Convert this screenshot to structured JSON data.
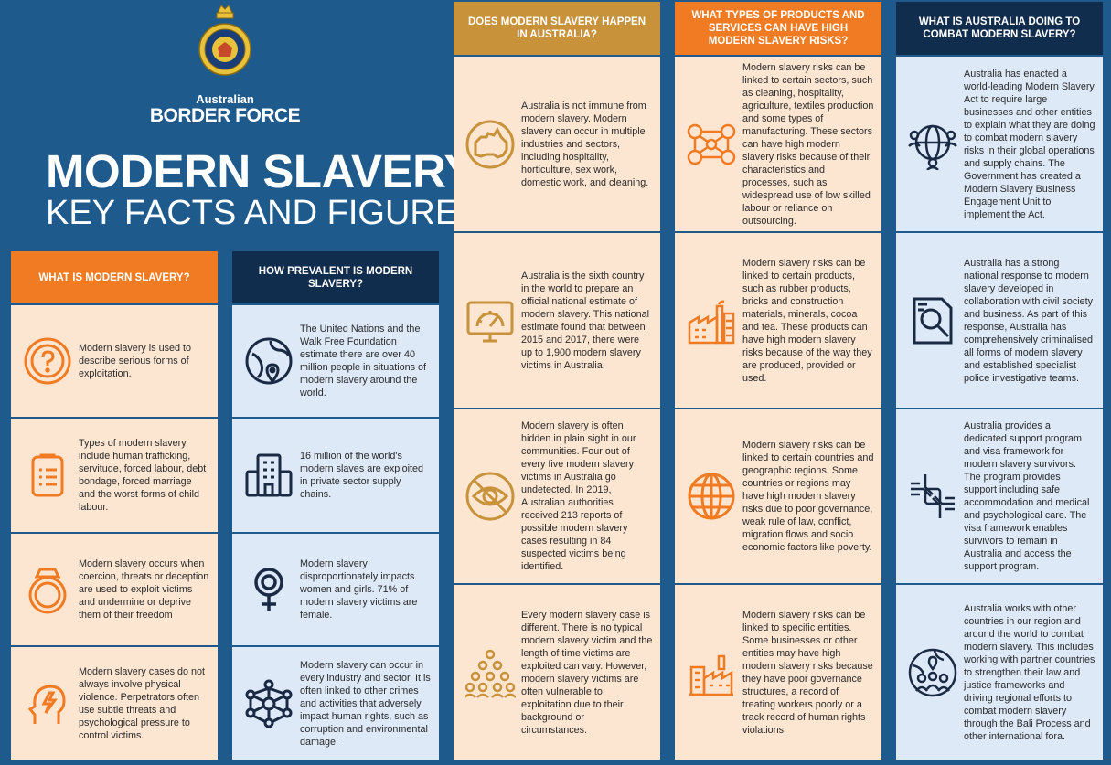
{
  "brand": {
    "line1": "Australian",
    "line2": "BORDER FORCE",
    "logo_icon": "border-force-crest-icon"
  },
  "title": {
    "line1": "MODERN SLAVERY",
    "line2": "KEY FACTS AND FIGURES"
  },
  "colors": {
    "background": "#1f5a8c",
    "orange": "#f07b22",
    "navy": "#112d4e",
    "gold": "#c8923a",
    "peach": "#fce6d2",
    "light_blue": "#dde9f7"
  },
  "columns": [
    {
      "heading": "WHAT IS MODERN SLAVERY?",
      "cells": [
        {
          "icon": "question-mark-icon",
          "text": "Modern slavery is used to describe serious forms of exploitation."
        },
        {
          "icon": "clipboard-list-icon",
          "text": "Types of modern slavery include human trafficking, servitude, forced labour, debt bondage, forced marriage and the worst forms of child labour."
        },
        {
          "icon": "ring-icon",
          "text": "Modern slavery occurs when coercion, threats or deception are used to exploit victims and undermine or deprive them of their freedom"
        },
        {
          "icon": "head-lightning-icon",
          "text": "Modern slavery cases do not always involve physical violence. Perpetrators often use subtle threats and psychological pressure to control victims."
        }
      ]
    },
    {
      "heading": "HOW PREVALENT IS MODERN SLAVERY?",
      "cells": [
        {
          "icon": "globe-location-icon",
          "text": "The United Nations and the Walk Free Foundation estimate there are over 40 million people in situations of modern slavery around the world."
        },
        {
          "icon": "office-building-icon",
          "text": "16 million of the world's modern slaves are exploited in private sector supply chains."
        },
        {
          "icon": "female-symbol-icon",
          "text": "Modern slavery disproportionately impacts women and girls. 71% of modern slavery victims are female."
        },
        {
          "icon": "network-icon",
          "text": "Modern slavery can occur in every industry and sector. It is often linked to other crimes and activities that adversely impact human rights, such as corruption and environmental damage."
        }
      ]
    },
    {
      "heading": "DOES MODERN SLAVERY HAPPEN IN AUSTRALIA?",
      "cells": [
        {
          "icon": "australia-map-icon",
          "text": "Australia is not immune from modern slavery. Modern slavery can occur in multiple industries and sectors, including hospitality, horticulture, sex work, domestic work, and cleaning."
        },
        {
          "icon": "gauge-monitor-icon",
          "text": "Australia is the sixth country in the world to prepare an official national estimate of modern slavery. This national estimate found that between 2015 and 2017, there were up to 1,900 modern slavery victims in Australia."
        },
        {
          "icon": "eye-slash-icon",
          "text": "Modern slavery is often hidden in plain sight in our communities. Four out of every five modern slavery victims in Australia go undetected. In 2019, Australian authorities received 213 reports of possible modern slavery cases resulting in 84 suspected victims being identified."
        },
        {
          "icon": "crowd-icon",
          "text": "Every modern slavery case is different. There is no typical modern slavery victim and the length of time victims are exploited can vary. However, modern slavery victims are often vulnerable to exploitation due to their background or circumstances."
        }
      ]
    },
    {
      "heading": "WHAT TYPES OF PRODUCTS AND SERVICES CAN HAVE HIGH MODERN SLAVERY RISKS?",
      "cells": [
        {
          "icon": "people-network-icon",
          "text": "Modern slavery risks can be linked to certain sectors, such as cleaning, hospitality, agriculture, textiles production and some types of manufacturing. These sectors can have high modern slavery risks because of their characteristics and processes, such as widespread use of low skilled labour or reliance on outsourcing."
        },
        {
          "icon": "factory-icon",
          "text": "Modern slavery risks can be linked to certain products, such as rubber products, bricks and construction materials, minerals, cocoa and tea. These products can have high modern slavery risks because of the way they are produced, provided or used."
        },
        {
          "icon": "globe-icon",
          "text": "Modern slavery risks can be linked to certain countries and geographic regions. Some countries or regions may have high modern slavery risks due to poor governance, weak rule of law, conflict, migration flows and socio economic factors like poverty."
        },
        {
          "icon": "industry-buildings-icon",
          "text": "Modern slavery risks can be linked to specific entities. Some businesses or other entities may have high modern slavery risks because they have poor governance structures, a record of treating workers poorly or a track record of human rights violations."
        }
      ]
    },
    {
      "heading": "WHAT IS AUSTRALIA DOING TO COMBAT MODERN SLAVERY?",
      "cells": [
        {
          "icon": "globe-people-icon",
          "text": "Australia has enacted a world-leading Modern Slavery Act to require large businesses and other entities to explain what they are doing to combat modern slavery risks in their global operations and supply chains. The Government has created a Modern Slavery Business Engagement Unit to implement the Act."
        },
        {
          "icon": "magnifier-document-icon",
          "text": "Australia has a strong national response to modern slavery developed in collaboration with civil society and business. As part of this response, Australia has comprehensively criminalised all forms of modern slavery and established specialist police investigative teams."
        },
        {
          "icon": "hands-together-icon",
          "text": "Australia provides a dedicated support program and visa framework for modern slavery survivors. The program provides support including safe accommodation and medical and psychological care. The visa framework enables survivors to remain in Australia and access the support program."
        },
        {
          "icon": "globe-partners-icon",
          "text": "Australia works with other countries in our region and around the world to combat modern slavery. This includes working with partner countries to strengthen their law and justice frameworks and driving regional efforts to combat modern slavery through the Bali Process and other international fora."
        }
      ]
    }
  ]
}
